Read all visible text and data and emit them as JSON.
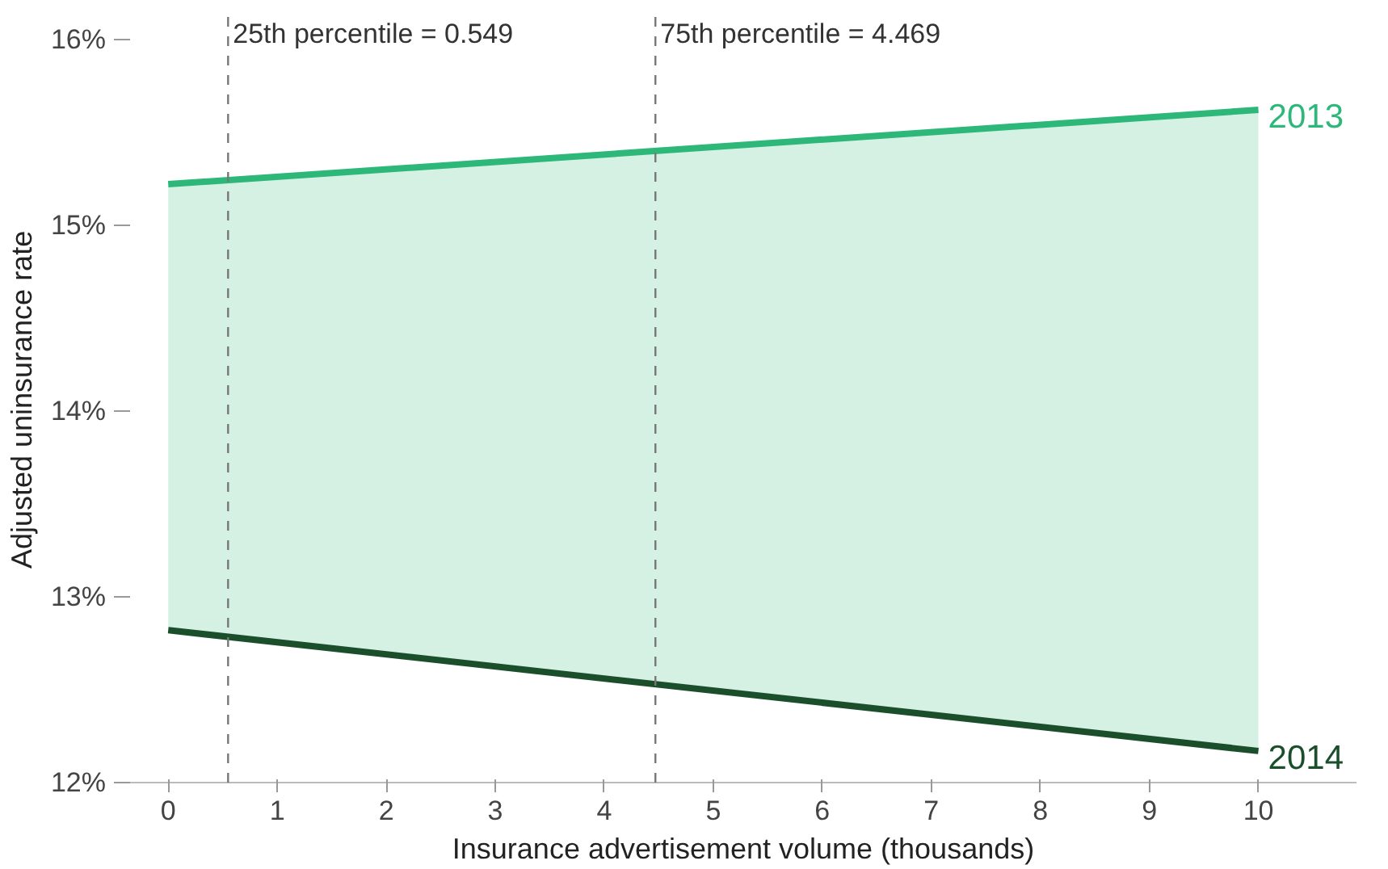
{
  "chart_data": {
    "type": "line",
    "xlabel": "Insurance advertisement volume (thousands)",
    "ylabel": "Adjusted uninsurance rate",
    "x": [
      0,
      10
    ],
    "series": [
      {
        "name": "2013",
        "color": "#2db87a",
        "values": [
          15.22,
          15.62
        ],
        "lower": [
          12.82,
          12.17
        ],
        "upper": [
          15.22,
          15.62
        ]
      },
      {
        "name": "2014",
        "color": "#1b4f2c",
        "values": [
          12.82,
          12.17
        ]
      }
    ],
    "xlim": [
      -0.35,
      10.9
    ],
    "xticks": [
      0,
      1,
      2,
      3,
      4,
      5,
      6,
      7,
      8,
      9,
      10
    ],
    "ylim": [
      12,
      16.12
    ],
    "yticks": [
      {
        "value": 12,
        "label": "12%"
      },
      {
        "value": 13,
        "label": "13%"
      },
      {
        "value": 14,
        "label": "14%"
      },
      {
        "value": 15,
        "label": "15%"
      },
      {
        "value": 16,
        "label": "16%"
      }
    ],
    "ref_lines": [
      {
        "axis": "x",
        "value": 0.549,
        "label": "25th percentile = 0.549",
        "color": "#777777",
        "line_style": "dashed"
      },
      {
        "axis": "x",
        "value": 4.469,
        "label": "75th percentile = 4.469",
        "color": "#777777",
        "line_style": "dashed"
      }
    ],
    "grid": false,
    "legend": false,
    "line_style": "solid",
    "marker": "none"
  }
}
